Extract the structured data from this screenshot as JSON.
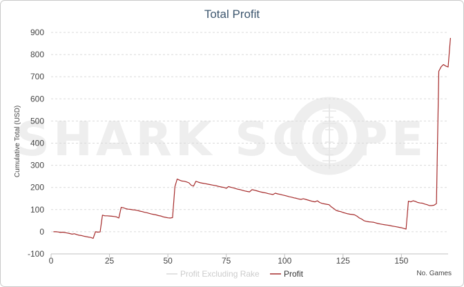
{
  "chart_data": {
    "type": "line",
    "title": "Total Profit",
    "ylabel": "Cumulative Total (USD)",
    "xlabel": "No. Games",
    "xlim": [
      0,
      170
    ],
    "ylim": [
      -100,
      900
    ],
    "xticks": [
      0,
      25,
      50,
      75,
      100,
      125,
      150
    ],
    "yticks": [
      -100,
      0,
      100,
      200,
      300,
      400,
      500,
      600,
      700,
      800,
      900
    ],
    "grid": true,
    "legend_position": "bottom-center",
    "watermark": "SHARK SCOPE",
    "series": [
      {
        "name": "Profit Excluding Rake",
        "color": "#d8d8d8",
        "points": []
      },
      {
        "name": "Profit",
        "color": "#a52a2a",
        "points": [
          [
            1,
            0
          ],
          [
            2,
            0
          ],
          [
            3,
            -1
          ],
          [
            4,
            -3
          ],
          [
            5,
            -2
          ],
          [
            6,
            -4
          ],
          [
            7,
            -6
          ],
          [
            8,
            -8
          ],
          [
            9,
            -11
          ],
          [
            10,
            -9
          ],
          [
            11,
            -13
          ],
          [
            12,
            -16
          ],
          [
            13,
            -17
          ],
          [
            14,
            -20
          ],
          [
            15,
            -22
          ],
          [
            16,
            -24
          ],
          [
            17,
            -26
          ],
          [
            18,
            -30
          ],
          [
            19,
            0
          ],
          [
            20,
            -2
          ],
          [
            21,
            -1
          ],
          [
            22,
            75
          ],
          [
            23,
            72
          ],
          [
            24,
            72
          ],
          [
            25,
            71
          ],
          [
            26,
            70
          ],
          [
            27,
            69
          ],
          [
            28,
            67
          ],
          [
            29,
            62
          ],
          [
            30,
            110
          ],
          [
            31,
            108
          ],
          [
            32,
            104
          ],
          [
            33,
            102
          ],
          [
            34,
            101
          ],
          [
            35,
            99
          ],
          [
            36,
            98
          ],
          [
            37,
            96
          ],
          [
            38,
            93
          ],
          [
            39,
            91
          ],
          [
            40,
            88
          ],
          [
            41,
            86
          ],
          [
            42,
            83
          ],
          [
            43,
            80
          ],
          [
            44,
            78
          ],
          [
            45,
            76
          ],
          [
            46,
            73
          ],
          [
            47,
            71
          ],
          [
            48,
            67
          ],
          [
            49,
            65
          ],
          [
            50,
            63
          ],
          [
            51,
            62
          ],
          [
            52,
            64
          ],
          [
            53,
            203
          ],
          [
            54,
            238
          ],
          [
            55,
            233
          ],
          [
            56,
            229
          ],
          [
            57,
            228
          ],
          [
            58,
            225
          ],
          [
            59,
            221
          ],
          [
            60,
            210
          ],
          [
            61,
            206
          ],
          [
            62,
            228
          ],
          [
            63,
            224
          ],
          [
            64,
            221
          ],
          [
            65,
            219
          ],
          [
            66,
            217
          ],
          [
            67,
            215
          ],
          [
            68,
            213
          ],
          [
            69,
            211
          ],
          [
            70,
            209
          ],
          [
            71,
            207
          ],
          [
            72,
            204
          ],
          [
            73,
            202
          ],
          [
            74,
            200
          ],
          [
            75,
            196
          ],
          [
            76,
            204
          ],
          [
            77,
            201
          ],
          [
            78,
            198
          ],
          [
            79,
            195
          ],
          [
            80,
            192
          ],
          [
            81,
            190
          ],
          [
            82,
            187
          ],
          [
            83,
            184
          ],
          [
            84,
            182
          ],
          [
            85,
            180
          ],
          [
            86,
            190
          ],
          [
            87,
            188
          ],
          [
            88,
            185
          ],
          [
            89,
            182
          ],
          [
            90,
            179
          ],
          [
            91,
            177
          ],
          [
            92,
            175
          ],
          [
            93,
            172
          ],
          [
            94,
            170
          ],
          [
            95,
            168
          ],
          [
            96,
            174
          ],
          [
            97,
            171
          ],
          [
            98,
            169
          ],
          [
            99,
            166
          ],
          [
            100,
            164
          ],
          [
            101,
            161
          ],
          [
            102,
            158
          ],
          [
            103,
            156
          ],
          [
            104,
            153
          ],
          [
            105,
            151
          ],
          [
            106,
            148
          ],
          [
            107,
            146
          ],
          [
            108,
            149
          ],
          [
            109,
            146
          ],
          [
            110,
            143
          ],
          [
            111,
            140
          ],
          [
            112,
            137
          ],
          [
            113,
            135
          ],
          [
            114,
            140
          ],
          [
            115,
            132
          ],
          [
            116,
            128
          ],
          [
            117,
            126
          ],
          [
            118,
            124
          ],
          [
            119,
            122
          ],
          [
            120,
            112
          ],
          [
            121,
            105
          ],
          [
            122,
            97
          ],
          [
            123,
            93
          ],
          [
            124,
            91
          ],
          [
            125,
            87
          ],
          [
            126,
            84
          ],
          [
            127,
            81
          ],
          [
            128,
            79
          ],
          [
            129,
            78
          ],
          [
            130,
            76
          ],
          [
            131,
            70
          ],
          [
            132,
            62
          ],
          [
            133,
            57
          ],
          [
            134,
            50
          ],
          [
            135,
            47
          ],
          [
            136,
            45
          ],
          [
            137,
            44
          ],
          [
            138,
            43
          ],
          [
            139,
            40
          ],
          [
            140,
            37
          ],
          [
            141,
            35
          ],
          [
            142,
            33
          ],
          [
            143,
            31
          ],
          [
            144,
            30
          ],
          [
            145,
            28
          ],
          [
            146,
            26
          ],
          [
            147,
            24
          ],
          [
            148,
            22
          ],
          [
            149,
            20
          ],
          [
            150,
            18
          ],
          [
            151,
            15
          ],
          [
            152,
            12
          ],
          [
            153,
            138
          ],
          [
            154,
            135
          ],
          [
            155,
            140
          ],
          [
            156,
            137
          ],
          [
            157,
            132
          ],
          [
            158,
            130
          ],
          [
            159,
            129
          ],
          [
            160,
            125
          ],
          [
            161,
            122
          ],
          [
            162,
            118
          ],
          [
            163,
            118
          ],
          [
            164,
            120
          ],
          [
            165,
            127
          ],
          [
            166,
            725
          ],
          [
            167,
            745
          ],
          [
            168,
            755
          ],
          [
            169,
            748
          ],
          [
            170,
            744
          ],
          [
            171,
            875
          ]
        ]
      }
    ]
  }
}
